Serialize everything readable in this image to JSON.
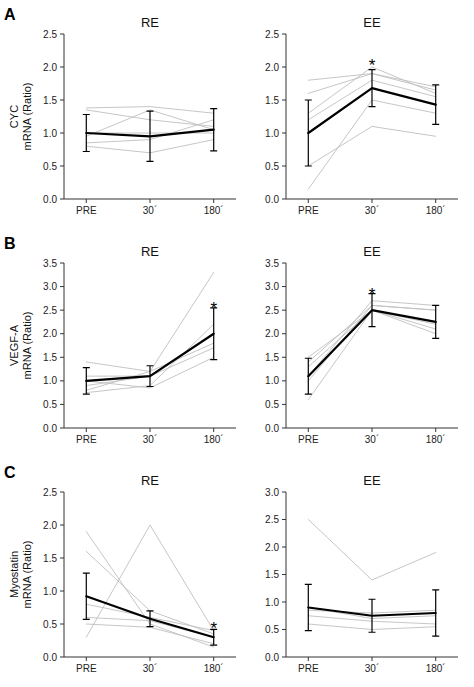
{
  "chart_data": [
    {
      "type": "line",
      "title": "RE",
      "panel_label": "A",
      "y_label": "CYC\nmRNA (Ratio)",
      "categories": [
        "PRE",
        "30´",
        "180´"
      ],
      "series": [
        {
          "color": "#c0c0c0",
          "values": [
            1.0,
            1.0,
            1.0
          ]
        },
        {
          "color": "#c0c0c0",
          "values": [
            1.38,
            1.4,
            1.3
          ]
        },
        {
          "color": "#c0c0c0",
          "values": [
            1.35,
            1.2,
            1.1
          ]
        },
        {
          "color": "#c0c0c0",
          "values": [
            0.85,
            0.9,
            1.2
          ]
        },
        {
          "color": "#c0c0c0",
          "values": [
            0.95,
            1.35,
            1.05
          ]
        },
        {
          "color": "#c0c0c0",
          "values": [
            0.8,
            0.7,
            0.9
          ]
        },
        {
          "color": "#000000",
          "values": [
            1.0,
            0.95,
            1.05
          ],
          "errors": [
            0.28,
            0.38,
            0.32
          ]
        }
      ],
      "ylim": [
        0,
        2.5
      ],
      "yticks": [
        {
          "value": 0,
          "label": "0.0"
        },
        0.5,
        {
          "value": 1,
          "label": "1.0"
        },
        1.5,
        {
          "value": 2,
          "label": "2.0"
        },
        2.5
      ],
      "grid": false
    },
    {
      "type": "line",
      "title": "EE",
      "categories": [
        "PRE",
        "30´",
        "180´"
      ],
      "series": [
        {
          "color": "#c0c0c0",
          "values": [
            1.8,
            1.9,
            1.65
          ]
        },
        {
          "color": "#c0c0c0",
          "values": [
            1.6,
            1.9,
            1.7
          ]
        },
        {
          "color": "#c0c0c0",
          "values": [
            1.3,
            2.0,
            1.6
          ]
        },
        {
          "color": "#c0c0c0",
          "values": [
            1.2,
            1.8,
            1.55
          ]
        },
        {
          "color": "#c0c0c0",
          "values": [
            0.5,
            1.1,
            0.95
          ]
        },
        {
          "color": "#c0c0c0",
          "values": [
            0.15,
            1.5,
            1.3
          ]
        },
        {
          "color": "#000000",
          "values": [
            1.0,
            1.68,
            1.43
          ],
          "errors": [
            0.5,
            0.28,
            0.3
          ]
        }
      ],
      "annotations": [
        {
          "text": "*",
          "x": 1,
          "y": 2.08
        }
      ],
      "ylim": [
        0,
        2.5
      ],
      "yticks": [
        {
          "value": 0,
          "label": "0.0"
        },
        0.5,
        {
          "value": 1,
          "label": "1.0"
        },
        1.5,
        {
          "value": 2,
          "label": "2.0"
        },
        2.5
      ],
      "grid": false
    },
    {
      "type": "line",
      "title": "RE",
      "panel_label": "B",
      "y_label": "VEGF-A\nmRNA (Ratio)",
      "categories": [
        "PRE",
        "30´",
        "180´"
      ],
      "series": [
        {
          "color": "#c0c0c0",
          "values": [
            1.0,
            0.85,
            1.5
          ]
        },
        {
          "color": "#c0c0c0",
          "values": [
            1.4,
            1.2,
            3.3
          ]
        },
        {
          "color": "#c0c0c0",
          "values": [
            0.75,
            0.9,
            2.2
          ]
        },
        {
          "color": "#c0c0c0",
          "values": [
            0.9,
            1.1,
            2.0
          ]
        },
        {
          "color": "#c0c0c0",
          "values": [
            0.8,
            1.2,
            1.8
          ]
        },
        {
          "color": "#c0c0c0",
          "values": [
            1.1,
            1.1,
            1.7
          ]
        },
        {
          "color": "#000000",
          "values": [
            1.0,
            1.1,
            2.0
          ],
          "errors": [
            0.28,
            0.22,
            0.55
          ]
        }
      ],
      "annotations": [
        {
          "text": "*",
          "x": 2,
          "y": 2.6
        }
      ],
      "ylim": [
        0,
        3.5
      ],
      "yticks": [
        {
          "value": 0,
          "label": "0.0"
        },
        0.5,
        {
          "value": 1,
          "label": "1.0"
        },
        1.5,
        {
          "value": 2,
          "label": "2.0"
        },
        2.5,
        {
          "value": 3,
          "label": "3.0"
        },
        3.5
      ],
      "grid": false
    },
    {
      "type": "line",
      "title": "EE",
      "categories": [
        "PRE",
        "30´",
        "180´"
      ],
      "series": [
        {
          "color": "#c0c0c0",
          "values": [
            0.6,
            2.5,
            2.0
          ]
        },
        {
          "color": "#c0c0c0",
          "values": [
            1.0,
            2.6,
            2.5
          ]
        },
        {
          "color": "#c0c0c0",
          "values": [
            1.1,
            2.7,
            2.6
          ]
        },
        {
          "color": "#c0c0c0",
          "values": [
            1.3,
            2.5,
            2.2
          ]
        },
        {
          "color": "#c0c0c0",
          "values": [
            1.5,
            2.5,
            2.1
          ]
        },
        {
          "color": "#c0c0c0",
          "values": [
            1.4,
            2.6,
            2.5
          ]
        },
        {
          "color": "#000000",
          "values": [
            1.1,
            2.5,
            2.25
          ],
          "errors": [
            0.38,
            0.35,
            0.35
          ]
        }
      ],
      "annotations": [
        {
          "text": "*",
          "x": 1,
          "y": 2.9
        }
      ],
      "ylim": [
        0,
        3.5
      ],
      "yticks": [
        {
          "value": 0,
          "label": "0.0"
        },
        0.5,
        {
          "value": 1,
          "label": "1.0"
        },
        1.5,
        {
          "value": 2,
          "label": "2.0"
        },
        2.5,
        {
          "value": 3,
          "label": "3.0"
        },
        3.5
      ],
      "grid": false
    },
    {
      "type": "line",
      "title": "RE",
      "panel_label": "C",
      "y_label": "Myostatin\nmRNA (Ratio)",
      "categories": [
        "PRE",
        "30´",
        "180´"
      ],
      "series": [
        {
          "color": "#c0c0c0",
          "values": [
            1.9,
            0.5,
            0.15
          ]
        },
        {
          "color": "#c0c0c0",
          "values": [
            1.6,
            0.7,
            0.35
          ]
        },
        {
          "color": "#c0c0c0",
          "values": [
            0.8,
            0.6,
            0.4
          ]
        },
        {
          "color": "#c0c0c0",
          "values": [
            0.6,
            0.55,
            0.3
          ]
        },
        {
          "color": "#c0c0c0",
          "values": [
            0.5,
            0.45,
            0.2
          ]
        },
        {
          "color": "#c0c0c0",
          "values": [
            0.3,
            2.0,
            0.4
          ]
        },
        {
          "color": "#000000",
          "values": [
            0.92,
            0.58,
            0.3
          ],
          "errors": [
            0.35,
            0.12,
            0.12
          ]
        }
      ],
      "annotations": [
        {
          "text": "*",
          "x": 2,
          "y": 0.48
        }
      ],
      "ylim": [
        0,
        2.5
      ],
      "yticks": [
        {
          "value": 0,
          "label": "0.0"
        },
        0.5,
        {
          "value": 1,
          "label": "1.0"
        },
        1.5,
        {
          "value": 2,
          "label": "2.0"
        },
        2.5
      ],
      "grid": false
    },
    {
      "type": "line",
      "title": "EE",
      "categories": [
        "PRE",
        "30´",
        "180´"
      ],
      "series": [
        {
          "color": "#c0c0c0",
          "values": [
            2.5,
            1.4,
            1.9
          ]
        },
        {
          "color": "#c0c0c0",
          "values": [
            0.6,
            0.5,
            0.55
          ]
        },
        {
          "color": "#c0c0c0",
          "values": [
            0.85,
            0.8,
            0.85
          ]
        },
        {
          "color": "#c0c0c0",
          "values": [
            0.75,
            0.65,
            0.6
          ]
        },
        {
          "color": "#c0c0c0",
          "values": [
            0.9,
            0.7,
            0.75
          ]
        },
        {
          "color": "#000000",
          "values": [
            0.9,
            0.75,
            0.8
          ],
          "errors": [
            0.42,
            0.3,
            0.42
          ]
        }
      ],
      "ylim": [
        0,
        3.0
      ],
      "yticks": [
        {
          "value": 0,
          "label": "0.0"
        },
        0.5,
        {
          "value": 1,
          "label": "1.0"
        },
        1.5,
        {
          "value": 2,
          "label": "2.0"
        },
        2.5,
        {
          "value": 3,
          "label": "3.0"
        }
      ],
      "grid": false
    }
  ]
}
